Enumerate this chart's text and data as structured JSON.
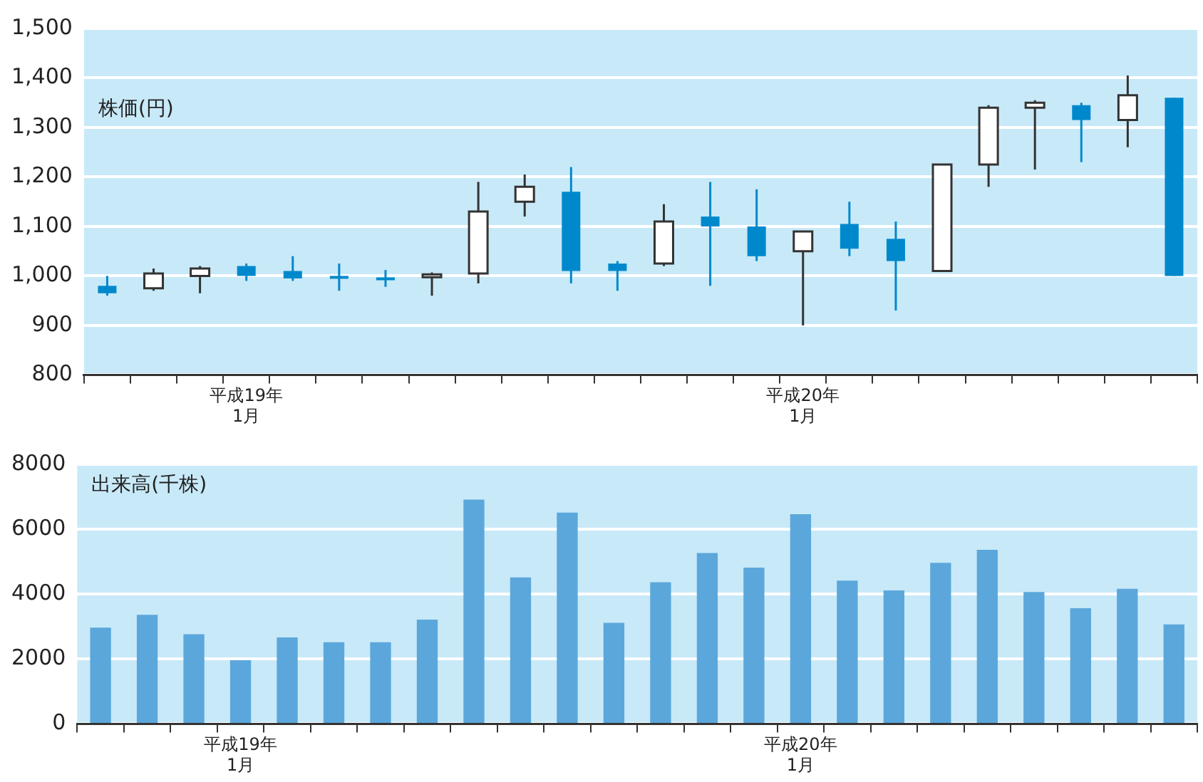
{
  "chart_data": [
    {
      "type": "candlestick",
      "ylabel": "株価(円)",
      "categories": [
        null,
        null,
        null,
        "平成19年\n1月",
        null,
        null,
        null,
        null,
        null,
        null,
        null,
        null,
        null,
        null,
        null,
        "平成20年\n1月",
        null,
        null,
        null,
        null,
        null,
        null,
        null,
        null
      ],
      "ohlc": [
        [
          980,
          1000,
          960,
          965
        ],
        [
          975,
          1015,
          970,
          1005
        ],
        [
          1000,
          1020,
          965,
          1015
        ],
        [
          1020,
          1025,
          990,
          1000
        ],
        [
          1010,
          1040,
          990,
          995
        ],
        [
          1000,
          1025,
          970,
          995
        ],
        [
          997,
          1012,
          978,
          995
        ],
        [
          998,
          1007,
          960,
          1003
        ],
        [
          1005,
          1190,
          985,
          1130
        ],
        [
          1150,
          1205,
          1120,
          1180
        ],
        [
          1170,
          1220,
          985,
          1010
        ],
        [
          1025,
          1030,
          970,
          1010
        ],
        [
          1025,
          1145,
          1020,
          1110
        ],
        [
          1120,
          1190,
          980,
          1100
        ],
        [
          1100,
          1175,
          1030,
          1040
        ],
        [
          1050,
          1090,
          900,
          1090
        ],
        [
          1105,
          1150,
          1040,
          1055
        ],
        [
          1075,
          1110,
          930,
          1030
        ],
        [
          1010,
          1225,
          1010,
          1225
        ],
        [
          1225,
          1345,
          1180,
          1340
        ],
        [
          1340,
          1355,
          1215,
          1350
        ],
        [
          1345,
          1350,
          1230,
          1315
        ],
        [
          1315,
          1405,
          1260,
          1365
        ],
        [
          1360,
          1360,
          1000,
          1000
        ]
      ],
      "colors": [
        "#0088cc",
        "#ffffff",
        "#ffffff",
        "#0088cc",
        "#0088cc",
        "#0088cc",
        "#0088cc",
        "#ffffff",
        "#ffffff",
        "#ffffff",
        "#0088cc",
        "#0088cc",
        "#ffffff",
        "#0088cc",
        "#0088cc",
        "#ffffff",
        "#0088cc",
        "#0088cc",
        "#ffffff",
        "#ffffff",
        "#ffffff",
        "#0088cc",
        "#ffffff",
        "#0088cc"
      ],
      "ylim": [
        800,
        1500
      ],
      "yticks": [
        {
          "value": 800,
          "label": "800"
        },
        {
          "value": 900,
          "label": "900"
        },
        {
          "value": 1000,
          "label": "1,000"
        },
        {
          "value": 1100,
          "label": "1,100"
        },
        {
          "value": 1200,
          "label": "1,200"
        },
        {
          "value": 1300,
          "label": "1,300"
        },
        {
          "value": 1400,
          "label": "1,400"
        },
        {
          "value": 1500,
          "label": "1,500"
        }
      ],
      "grid": "y",
      "legend": false
    },
    {
      "type": "bar",
      "ylabel": "出来高(千株)",
      "categories": [
        null,
        null,
        null,
        "平成19年\n1月",
        null,
        null,
        null,
        null,
        null,
        null,
        null,
        null,
        null,
        null,
        null,
        "平成20年\n1月",
        null,
        null,
        null,
        null,
        null,
        null,
        null,
        null
      ],
      "values": [
        2950,
        3350,
        2750,
        1950,
        2650,
        2500,
        2500,
        3200,
        6900,
        4500,
        6500,
        3100,
        4350,
        5250,
        4800,
        6450,
        4400,
        4100,
        4950,
        5350,
        4050,
        3550,
        4150,
        3050
      ],
      "color": "#5ba7db",
      "ylim": [
        0,
        8000
      ],
      "yticks": [
        0,
        2000,
        4000,
        6000,
        8000
      ],
      "grid": "y",
      "legend": false
    }
  ]
}
